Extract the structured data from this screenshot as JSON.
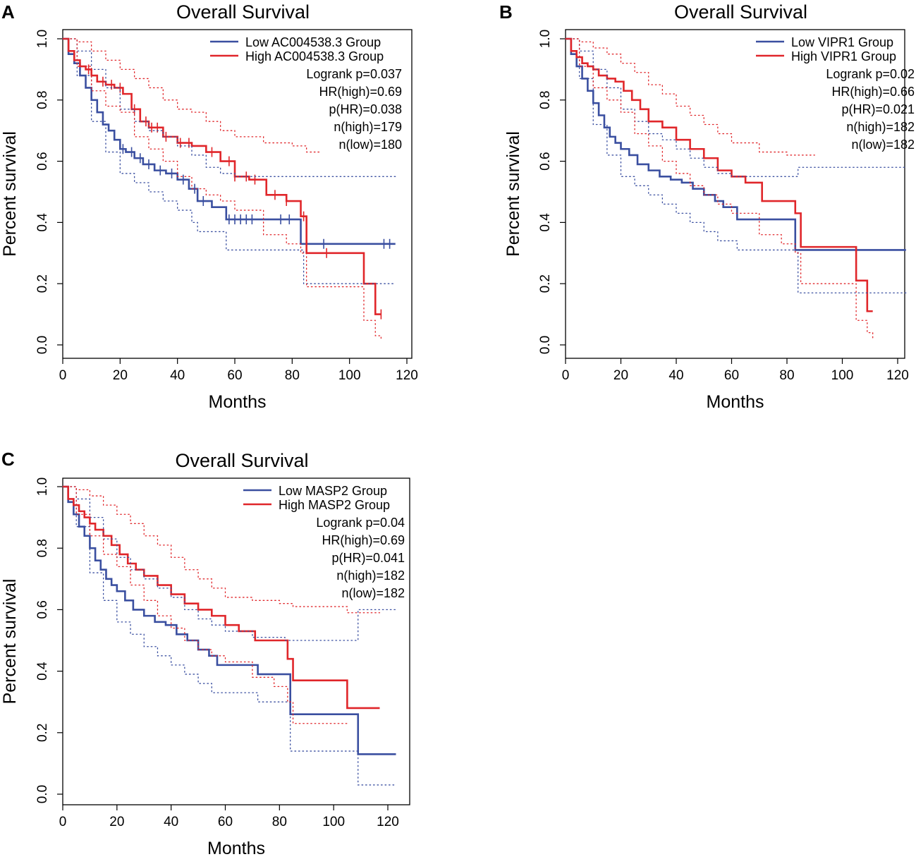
{
  "colors": {
    "low": "#3a4fa0",
    "high": "#e0262a"
  },
  "chart_data": [
    {
      "type": "line",
      "panel_label": "A",
      "title": "Overall Survival",
      "xlabel": "Months",
      "ylabel": "Percent survival",
      "xlim": [
        0,
        120
      ],
      "ylim": [
        0,
        1
      ],
      "xticks": [
        "0",
        "20",
        "40",
        "60",
        "80",
        "100",
        "120"
      ],
      "yticks": [
        "0.0",
        "0.2",
        "0.4",
        "0.6",
        "0.8",
        "1.0"
      ],
      "legend": [
        "Low AC004538.3 Group",
        "High AC004538.3 Group"
      ],
      "stats": [
        "Logrank p=0.037",
        "HR(high)=0.69",
        "p(HR)=0.038",
        "n(high)=179",
        "n(low)=180"
      ],
      "series": [
        {
          "name": "Low AC004538.3 Group",
          "color_key": "low",
          "x": [
            0,
            2,
            4,
            6,
            8,
            10,
            12,
            14,
            16,
            18,
            20,
            22,
            25,
            28,
            32,
            36,
            40,
            44,
            47,
            52,
            57,
            65,
            75,
            82,
            83,
            90,
            100,
            110,
            116
          ],
          "y": [
            1,
            0.95,
            0.92,
            0.88,
            0.84,
            0.8,
            0.76,
            0.72,
            0.7,
            0.67,
            0.64,
            0.63,
            0.61,
            0.59,
            0.57,
            0.56,
            0.54,
            0.51,
            0.47,
            0.45,
            0.41,
            0.41,
            0.41,
            0.41,
            0.33,
            0.33,
            0.33,
            0.33,
            0.33
          ],
          "censor_x": [
            21,
            24,
            27,
            30,
            34,
            38,
            42,
            46,
            49,
            58,
            60,
            62,
            64,
            66,
            76,
            79,
            91,
            112,
            114
          ]
        },
        {
          "name": "High AC004538.3 Group",
          "color_key": "high",
          "x": [
            0,
            2,
            4,
            6,
            8,
            10,
            12,
            15,
            18,
            21,
            24,
            27,
            30,
            35,
            40,
            45,
            50,
            55,
            60,
            65,
            71,
            78,
            83,
            85,
            95,
            105,
            109,
            111
          ],
          "y": [
            1,
            0.96,
            0.93,
            0.91,
            0.9,
            0.88,
            0.86,
            0.85,
            0.84,
            0.82,
            0.77,
            0.73,
            0.71,
            0.68,
            0.66,
            0.65,
            0.63,
            0.6,
            0.55,
            0.54,
            0.49,
            0.47,
            0.42,
            0.3,
            0.3,
            0.2,
            0.1,
            0.1
          ],
          "censor_x": [
            9,
            14,
            17,
            20,
            25,
            29,
            31,
            33,
            36,
            41,
            44,
            52,
            58,
            60,
            64,
            67,
            74,
            78,
            84,
            92,
            111
          ]
        },
        {
          "name": "Low AC004538.3 Group CI upper",
          "color_key": "low",
          "dotted": true,
          "x": [
            0,
            5,
            10,
            15,
            20,
            25,
            30,
            35,
            40,
            45,
            50,
            55,
            60,
            70,
            82,
            84,
            116
          ],
          "y": [
            1,
            0.96,
            0.9,
            0.84,
            0.77,
            0.73,
            0.7,
            0.68,
            0.65,
            0.62,
            0.58,
            0.56,
            0.55,
            0.55,
            0.55,
            0.55,
            0.55
          ]
        },
        {
          "name": "Low AC004538.3 Group CI lower",
          "color_key": "low",
          "dotted": true,
          "x": [
            0,
            5,
            10,
            15,
            20,
            25,
            30,
            35,
            40,
            45,
            47,
            57,
            60,
            70,
            82,
            84,
            116
          ],
          "y": [
            1,
            0.88,
            0.73,
            0.63,
            0.56,
            0.53,
            0.5,
            0.47,
            0.44,
            0.4,
            0.37,
            0.31,
            0.31,
            0.31,
            0.31,
            0.2,
            0.2
          ]
        },
        {
          "name": "High AC004538.3 Group CI upper",
          "color_key": "high",
          "dotted": true,
          "x": [
            0,
            5,
            10,
            15,
            20,
            25,
            30,
            35,
            40,
            45,
            50,
            55,
            60,
            70,
            80,
            85,
            90
          ],
          "y": [
            1,
            0.99,
            0.96,
            0.93,
            0.9,
            0.87,
            0.84,
            0.8,
            0.77,
            0.76,
            0.73,
            0.7,
            0.68,
            0.66,
            0.65,
            0.63,
            0.63
          ]
        },
        {
          "name": "High AC004538.3 Group CI lower",
          "color_key": "high",
          "dotted": true,
          "x": [
            0,
            5,
            10,
            15,
            20,
            25,
            30,
            35,
            40,
            45,
            50,
            55,
            60,
            70,
            78,
            83,
            85,
            105,
            109,
            111
          ],
          "y": [
            1,
            0.91,
            0.83,
            0.78,
            0.76,
            0.68,
            0.64,
            0.6,
            0.55,
            0.51,
            0.49,
            0.47,
            0.44,
            0.36,
            0.33,
            0.3,
            0.19,
            0.08,
            0.03,
            0.02
          ]
        }
      ]
    },
    {
      "type": "line",
      "panel_label": "B",
      "title": "Overall Survival",
      "xlabel": "Months",
      "ylabel": "Percent survival",
      "xlim": [
        0,
        120
      ],
      "ylim": [
        0,
        1
      ],
      "xticks": [
        "0",
        "20",
        "40",
        "60",
        "80",
        "100",
        "120"
      ],
      "yticks": [
        "0.0",
        "0.2",
        "0.4",
        "0.6",
        "0.8",
        "1.0"
      ],
      "legend": [
        "Low VIPR1 Group",
        "High VIPR1 Group"
      ],
      "stats": [
        "Logrank p=0.02",
        "HR(high)=0.66",
        "p(HR)=0.021",
        "n(high)=182",
        "n(low)=182"
      ],
      "series": [
        {
          "name": "Low VIPR1 Group",
          "color_key": "low",
          "x": [
            0,
            2,
            4,
            6,
            8,
            10,
            12,
            14,
            16,
            18,
            20,
            23,
            26,
            30,
            34,
            38,
            42,
            46,
            50,
            54,
            57,
            62,
            70,
            82,
            83,
            90,
            100,
            110,
            123
          ],
          "y": [
            1,
            0.95,
            0.91,
            0.87,
            0.83,
            0.79,
            0.75,
            0.71,
            0.68,
            0.66,
            0.64,
            0.62,
            0.59,
            0.57,
            0.55,
            0.54,
            0.53,
            0.51,
            0.49,
            0.47,
            0.45,
            0.41,
            0.41,
            0.41,
            0.31,
            0.31,
            0.31,
            0.31,
            0.31
          ]
        },
        {
          "name": "High VIPR1 Group",
          "color_key": "high",
          "x": [
            0,
            2,
            4,
            6,
            8,
            10,
            12,
            15,
            18,
            21,
            24,
            27,
            30,
            35,
            40,
            45,
            50,
            55,
            60,
            65,
            71,
            78,
            83,
            85,
            95,
            105,
            109,
            111
          ],
          "y": [
            1,
            0.96,
            0.94,
            0.92,
            0.91,
            0.9,
            0.88,
            0.87,
            0.86,
            0.83,
            0.8,
            0.77,
            0.73,
            0.71,
            0.67,
            0.64,
            0.61,
            0.57,
            0.55,
            0.53,
            0.47,
            0.47,
            0.43,
            0.32,
            0.32,
            0.21,
            0.11,
            0.11
          ]
        },
        {
          "name": "Low VIPR1 Group CI upper",
          "color_key": "low",
          "dotted": true,
          "x": [
            0,
            5,
            10,
            15,
            20,
            25,
            30,
            35,
            40,
            45,
            50,
            55,
            60,
            70,
            82,
            84,
            123
          ],
          "y": [
            1,
            0.96,
            0.9,
            0.84,
            0.77,
            0.73,
            0.69,
            0.67,
            0.64,
            0.61,
            0.58,
            0.56,
            0.55,
            0.55,
            0.55,
            0.58,
            0.58
          ]
        },
        {
          "name": "Low VIPR1 Group CI lower",
          "color_key": "low",
          "dotted": true,
          "x": [
            0,
            5,
            10,
            15,
            20,
            25,
            30,
            35,
            40,
            45,
            50,
            55,
            62,
            70,
            82,
            84,
            123
          ],
          "y": [
            1,
            0.87,
            0.72,
            0.62,
            0.55,
            0.52,
            0.49,
            0.46,
            0.43,
            0.4,
            0.37,
            0.34,
            0.31,
            0.31,
            0.31,
            0.17,
            0.17
          ]
        },
        {
          "name": "High VIPR1 Group CI upper",
          "color_key": "high",
          "dotted": true,
          "x": [
            0,
            5,
            10,
            15,
            20,
            25,
            30,
            35,
            40,
            45,
            50,
            55,
            60,
            70,
            80,
            85,
            90
          ],
          "y": [
            1,
            0.99,
            0.97,
            0.95,
            0.92,
            0.89,
            0.85,
            0.82,
            0.78,
            0.75,
            0.72,
            0.69,
            0.66,
            0.63,
            0.62,
            0.62,
            0.62
          ]
        },
        {
          "name": "High VIPR1 Group CI lower",
          "color_key": "high",
          "dotted": true,
          "x": [
            0,
            5,
            10,
            15,
            20,
            25,
            30,
            35,
            40,
            45,
            50,
            55,
            60,
            70,
            78,
            83,
            85,
            105,
            109,
            111
          ],
          "y": [
            1,
            0.91,
            0.84,
            0.8,
            0.76,
            0.69,
            0.65,
            0.6,
            0.56,
            0.52,
            0.49,
            0.46,
            0.43,
            0.36,
            0.33,
            0.3,
            0.2,
            0.08,
            0.04,
            0.02
          ]
        }
      ]
    },
    {
      "type": "line",
      "panel_label": "C",
      "title": "Overall Survival",
      "xlabel": "Months",
      "ylabel": "Percent survival",
      "xlim": [
        0,
        120
      ],
      "ylim": [
        0,
        1
      ],
      "xticks": [
        "0",
        "20",
        "40",
        "60",
        "80",
        "100",
        "120"
      ],
      "yticks": [
        "0.0",
        "0.2",
        "0.4",
        "0.6",
        "0.8",
        "1.0"
      ],
      "legend": [
        "Low MASP2 Group",
        "High MASP2 Group"
      ],
      "stats": [
        "Logrank p=0.04",
        "HR(high)=0.69",
        "p(HR)=0.041",
        "n(high)=182",
        "n(low)=182"
      ],
      "series": [
        {
          "name": "Low MASP2 Group",
          "color_key": "low",
          "x": [
            0,
            2,
            4,
            6,
            8,
            10,
            12,
            14,
            16,
            18,
            20,
            23,
            26,
            30,
            34,
            38,
            42,
            46,
            50,
            54,
            57,
            62,
            72,
            82,
            84,
            96,
            109,
            115,
            123
          ],
          "y": [
            1,
            0.95,
            0.91,
            0.87,
            0.84,
            0.8,
            0.76,
            0.73,
            0.7,
            0.68,
            0.66,
            0.63,
            0.6,
            0.58,
            0.56,
            0.55,
            0.52,
            0.5,
            0.47,
            0.45,
            0.42,
            0.42,
            0.39,
            0.39,
            0.26,
            0.26,
            0.13,
            0.13,
            0.13
          ]
        },
        {
          "name": "High MASP2 Group",
          "color_key": "high",
          "x": [
            0,
            2,
            4,
            6,
            8,
            10,
            12,
            15,
            18,
            21,
            24,
            27,
            30,
            35,
            40,
            45,
            50,
            55,
            60,
            65,
            71,
            78,
            83,
            85,
            95,
            105,
            110,
            117
          ],
          "y": [
            1,
            0.96,
            0.94,
            0.92,
            0.9,
            0.88,
            0.86,
            0.84,
            0.81,
            0.78,
            0.75,
            0.73,
            0.71,
            0.68,
            0.65,
            0.62,
            0.6,
            0.58,
            0.55,
            0.53,
            0.5,
            0.5,
            0.44,
            0.37,
            0.37,
            0.28,
            0.28,
            0.28
          ]
        },
        {
          "name": "Low MASP2 Group CI upper",
          "color_key": "low",
          "dotted": true,
          "x": [
            0,
            5,
            10,
            15,
            20,
            25,
            30,
            35,
            40,
            45,
            50,
            55,
            60,
            70,
            82,
            84,
            109,
            123
          ],
          "y": [
            1,
            0.96,
            0.9,
            0.83,
            0.77,
            0.73,
            0.7,
            0.67,
            0.64,
            0.6,
            0.57,
            0.55,
            0.53,
            0.51,
            0.5,
            0.5,
            0.6,
            0.6
          ]
        },
        {
          "name": "Low MASP2 Group CI lower",
          "color_key": "low",
          "dotted": true,
          "x": [
            0,
            5,
            10,
            15,
            20,
            25,
            30,
            35,
            40,
            45,
            50,
            55,
            60,
            72,
            82,
            84,
            109,
            123
          ],
          "y": [
            1,
            0.87,
            0.72,
            0.63,
            0.56,
            0.52,
            0.48,
            0.45,
            0.42,
            0.39,
            0.36,
            0.33,
            0.33,
            0.3,
            0.3,
            0.14,
            0.03,
            0.03
          ]
        },
        {
          "name": "High MASP2 Group CI upper",
          "color_key": "high",
          "dotted": true,
          "x": [
            0,
            5,
            10,
            15,
            20,
            25,
            30,
            35,
            40,
            45,
            50,
            55,
            60,
            70,
            80,
            85,
            105,
            117
          ],
          "y": [
            1,
            0.99,
            0.97,
            0.94,
            0.91,
            0.88,
            0.84,
            0.81,
            0.77,
            0.73,
            0.7,
            0.67,
            0.64,
            0.63,
            0.62,
            0.61,
            0.59,
            0.59
          ]
        },
        {
          "name": "High MASP2 Group CI lower",
          "color_key": "high",
          "dotted": true,
          "x": [
            0,
            5,
            10,
            15,
            20,
            25,
            30,
            35,
            40,
            45,
            50,
            55,
            60,
            70,
            78,
            83,
            85,
            100,
            105
          ],
          "y": [
            1,
            0.91,
            0.84,
            0.78,
            0.74,
            0.68,
            0.63,
            0.58,
            0.54,
            0.5,
            0.47,
            0.45,
            0.43,
            0.38,
            0.35,
            0.3,
            0.23,
            0.23,
            0.23
          ]
        }
      ]
    }
  ]
}
